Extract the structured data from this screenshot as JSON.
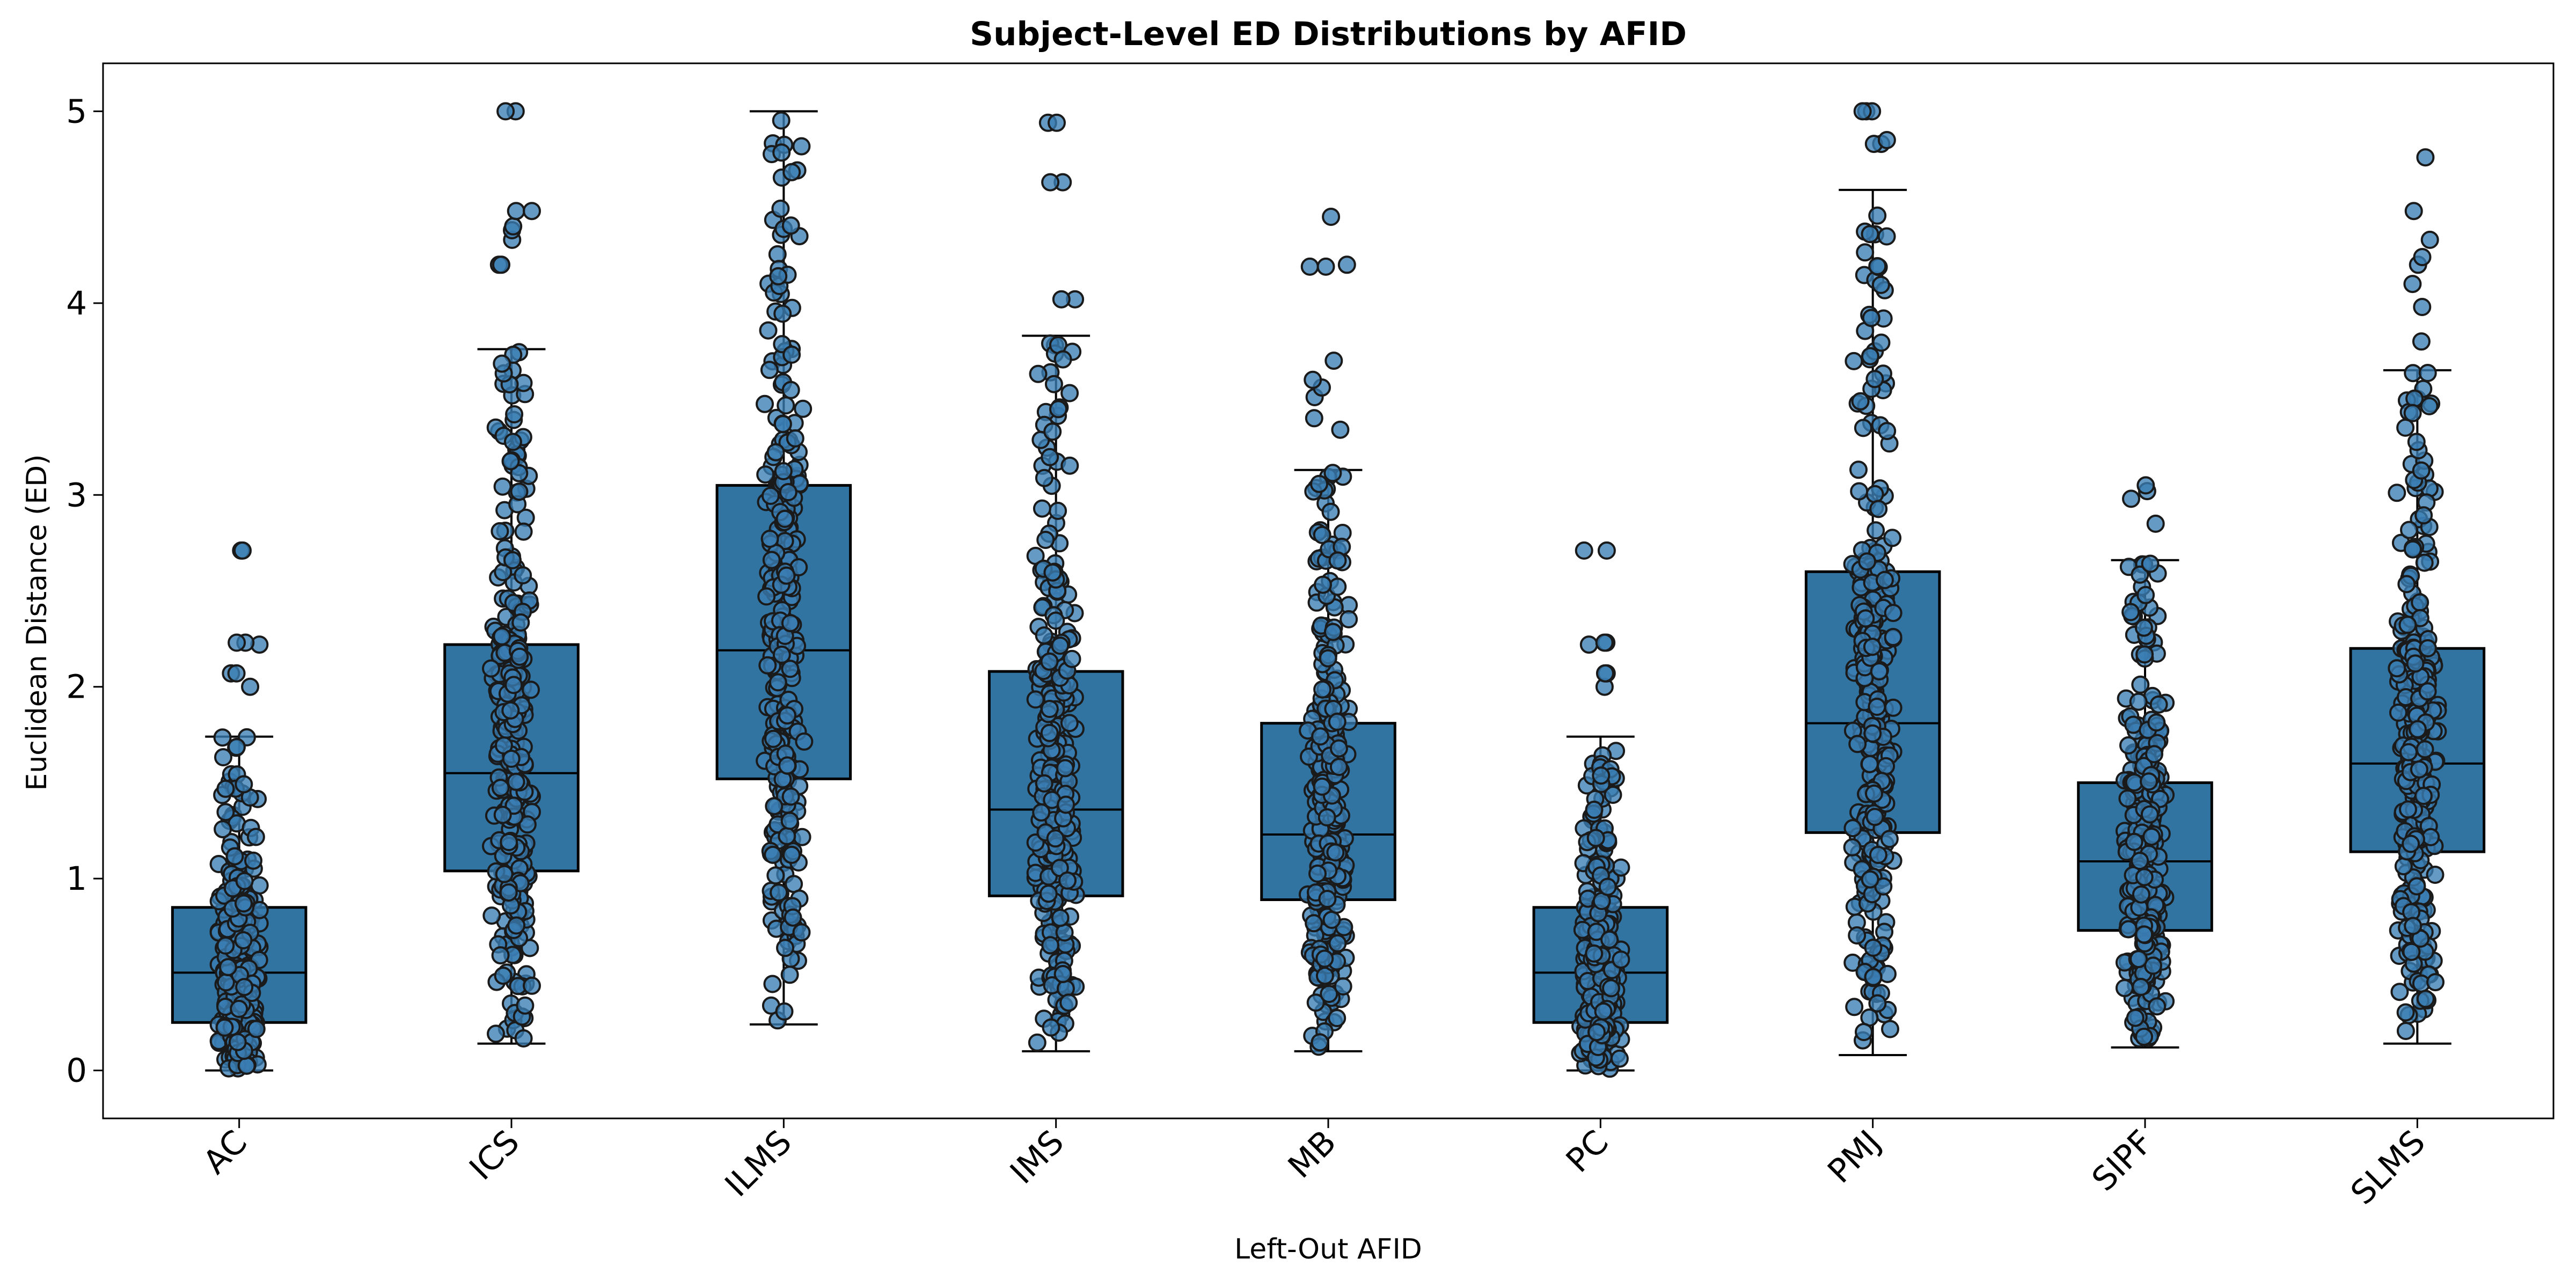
{
  "chart_data": {
    "type": "box",
    "title": "Subject-Level ED Distributions by AFID",
    "xlabel": "Left-Out AFID",
    "ylabel": "Euclidean Distance (ED)",
    "ylim": [
      -0.25,
      5.25
    ],
    "yticks": [
      0,
      1,
      2,
      3,
      4,
      5
    ],
    "categories": [
      "AC",
      "ICS",
      "ILMS",
      "IMS",
      "MB",
      "PC",
      "PMJ",
      "SIPF",
      "SLMS"
    ],
    "boxes": [
      {
        "name": "AC",
        "whisker_low": 0.0,
        "q1": 0.25,
        "median": 0.51,
        "q3": 0.85,
        "whisker_high": 1.74,
        "outliers": [
          2.0,
          2.07,
          2.07,
          2.22,
          2.23,
          2.23,
          2.71,
          2.71
        ]
      },
      {
        "name": "ICS",
        "whisker_low": 0.14,
        "q1": 1.04,
        "median": 1.55,
        "q3": 2.22,
        "whisker_high": 3.76,
        "outliers": [
          4.2,
          4.2,
          4.33,
          4.38,
          4.4,
          4.48,
          4.48,
          5.0,
          5.0
        ]
      },
      {
        "name": "ILMS",
        "whisker_low": 0.24,
        "q1": 1.52,
        "median": 2.19,
        "q3": 3.05,
        "whisker_high": 5.0,
        "outliers": []
      },
      {
        "name": "IMS",
        "whisker_low": 0.1,
        "q1": 0.91,
        "median": 1.36,
        "q3": 2.08,
        "whisker_high": 3.83,
        "outliers": [
          4.02,
          4.02,
          4.63,
          4.63,
          4.94,
          4.94
        ]
      },
      {
        "name": "MB",
        "whisker_low": 0.1,
        "q1": 0.89,
        "median": 1.23,
        "q3": 1.81,
        "whisker_high": 3.13,
        "outliers": [
          3.34,
          3.4,
          3.51,
          3.56,
          3.6,
          3.7,
          4.19,
          4.19,
          4.2,
          4.45
        ]
      },
      {
        "name": "PC",
        "whisker_low": 0.0,
        "q1": 0.25,
        "median": 0.51,
        "q3": 0.85,
        "whisker_high": 1.74,
        "outliers": [
          2.0,
          2.07,
          2.07,
          2.22,
          2.23,
          2.23,
          2.71,
          2.71
        ]
      },
      {
        "name": "PMJ",
        "whisker_low": 0.08,
        "q1": 1.24,
        "median": 1.81,
        "q3": 2.6,
        "whisker_high": 4.59,
        "outliers": [
          4.83,
          4.83,
          4.85,
          5.0,
          5.0,
          5.0
        ]
      },
      {
        "name": "SIPF",
        "whisker_low": 0.12,
        "q1": 0.73,
        "median": 1.09,
        "q3": 1.5,
        "whisker_high": 2.66,
        "outliers": [
          2.85,
          2.98,
          3.02,
          3.05
        ]
      },
      {
        "name": "SLMS",
        "whisker_low": 0.14,
        "q1": 1.14,
        "median": 1.6,
        "q3": 2.2,
        "whisker_high": 3.65,
        "outliers": [
          3.8,
          3.98,
          4.1,
          4.2,
          4.24,
          4.33,
          4.48,
          4.76
        ]
      }
    ],
    "points_per_category": 300,
    "grid": false,
    "box_color": "#3274a1",
    "point_color": "#3a7db3",
    "edge_color": "#1a1a1a"
  }
}
